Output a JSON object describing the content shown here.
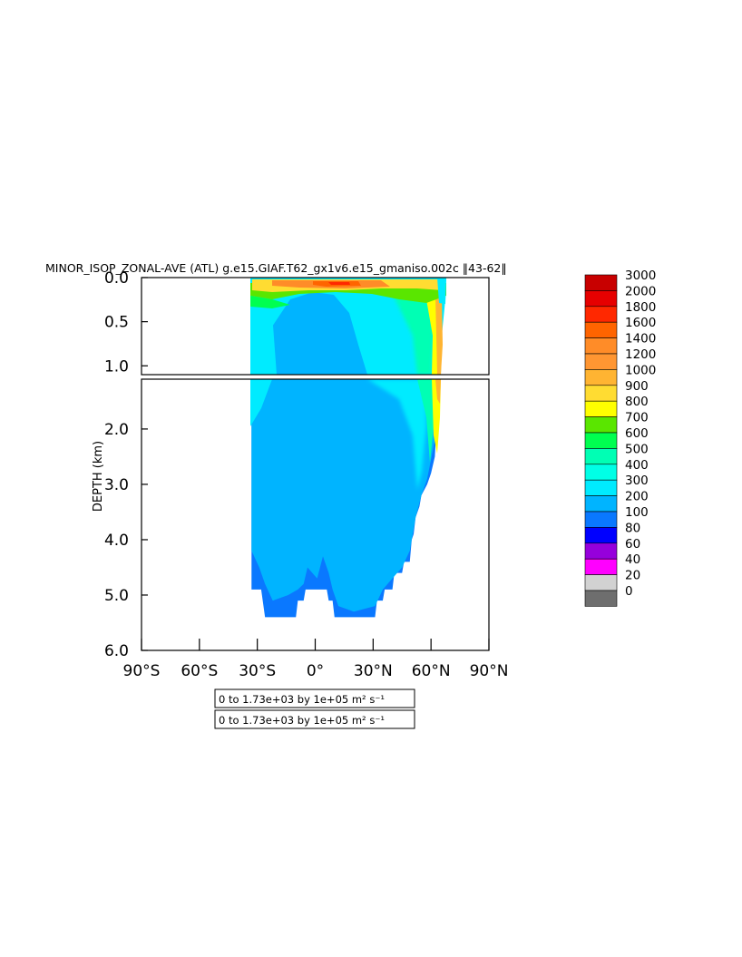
{
  "chart_data": {
    "type": "heatmap",
    "title": "MINOR_ISOP_ZONAL-AVE (ATL) g.e15.GIAF.T62_gx1v6.e15_gmaniso.002c ‖43-62‖",
    "ylabel": "DEPTH (km)",
    "xlabel": "",
    "x_ticks": [
      "90°S",
      "60°S",
      "30°S",
      "0°",
      "30°N",
      "60°N",
      "90°N"
    ],
    "x_tick_values": [
      -90,
      -60,
      -30,
      0,
      30,
      60,
      90
    ],
    "xlim": [
      -90,
      90
    ],
    "y_ticks_upper": [
      "0.0",
      "0.5",
      "1.0"
    ],
    "y_tick_values_upper": [
      0.0,
      0.5,
      1.0
    ],
    "ylim_upper": [
      0.0,
      1.1
    ],
    "y_ticks_lower": [
      "2.0",
      "3.0",
      "4.0",
      "5.0",
      "6.0"
    ],
    "y_tick_values_lower": [
      2.0,
      3.0,
      4.0,
      5.0,
      6.0
    ],
    "ylim_lower": [
      1.1,
      6.0
    ],
    "colorbar": {
      "levels": [
        "3000",
        "2000",
        "1800",
        "1600",
        "1400",
        "1200",
        "1000",
        "900",
        "800",
        "700",
        "600",
        "500",
        "400",
        "300",
        "200",
        "100",
        "80",
        "60",
        "40",
        "20",
        "0"
      ],
      "level_values": [
        3000,
        2000,
        1800,
        1600,
        1400,
        1200,
        1000,
        900,
        800,
        700,
        600,
        500,
        400,
        300,
        200,
        100,
        80,
        60,
        40,
        20,
        0
      ],
      "colors": [
        "#c80000",
        "#e60000",
        "#ff2800",
        "#ff6400",
        "#ff8c28",
        "#ff9632",
        "#ffb432",
        "#ffdc32",
        "#ffff00",
        "#5ae600",
        "#00ff50",
        "#00ffb4",
        "#00ffe6",
        "#00ebff",
        "#00b4ff",
        "#0a78ff",
        "#0000ff",
        "#9600dc",
        "#ff00ff",
        "#d2d2d2",
        "#6e6e6e"
      ]
    },
    "notes": [
      "0 to 1.73e+03 by 1e+05 m² s⁻¹",
      "0 to 1.73e+03 by 1e+05 m² s⁻¹"
    ],
    "ocean_extent": {
      "lat_south_edge": -33,
      "lat_north_edge_surface": 67,
      "bottom_profile": [
        {
          "lat": -33,
          "depth": 4.9
        },
        {
          "lat": -28,
          "depth": 4.9
        },
        {
          "lat": -26,
          "depth": 5.4
        },
        {
          "lat": -10,
          "depth": 5.4
        },
        {
          "lat": -9,
          "depth": 5.1
        },
        {
          "lat": -6,
          "depth": 5.1
        },
        {
          "lat": -5,
          "depth": 4.9
        },
        {
          "lat": 6,
          "depth": 4.9
        },
        {
          "lat": 7,
          "depth": 5.1
        },
        {
          "lat": 9,
          "depth": 5.1
        },
        {
          "lat": 10,
          "depth": 5.4
        },
        {
          "lat": 31,
          "depth": 5.4
        },
        {
          "lat": 32,
          "depth": 5.1
        },
        {
          "lat": 35,
          "depth": 5.1
        },
        {
          "lat": 36,
          "depth": 4.9
        },
        {
          "lat": 40,
          "depth": 4.9
        },
        {
          "lat": 41,
          "depth": 4.6
        },
        {
          "lat": 45,
          "depth": 4.6
        },
        {
          "lat": 46,
          "depth": 4.4
        },
        {
          "lat": 49,
          "depth": 4.4
        },
        {
          "lat": 50,
          "depth": 4.0
        },
        {
          "lat": 51,
          "depth": 3.9
        },
        {
          "lat": 52,
          "depth": 3.6
        },
        {
          "lat": 54,
          "depth": 3.4
        },
        {
          "lat": 55,
          "depth": 3.2
        },
        {
          "lat": 58,
          "depth": 3.0
        },
        {
          "lat": 60,
          "depth": 2.8
        },
        {
          "lat": 62,
          "depth": 2.5
        },
        {
          "lat": 64,
          "depth": 1.1
        },
        {
          "lat": 65,
          "depth": 0.6
        },
        {
          "lat": 67,
          "depth": 0.0
        }
      ]
    }
  }
}
